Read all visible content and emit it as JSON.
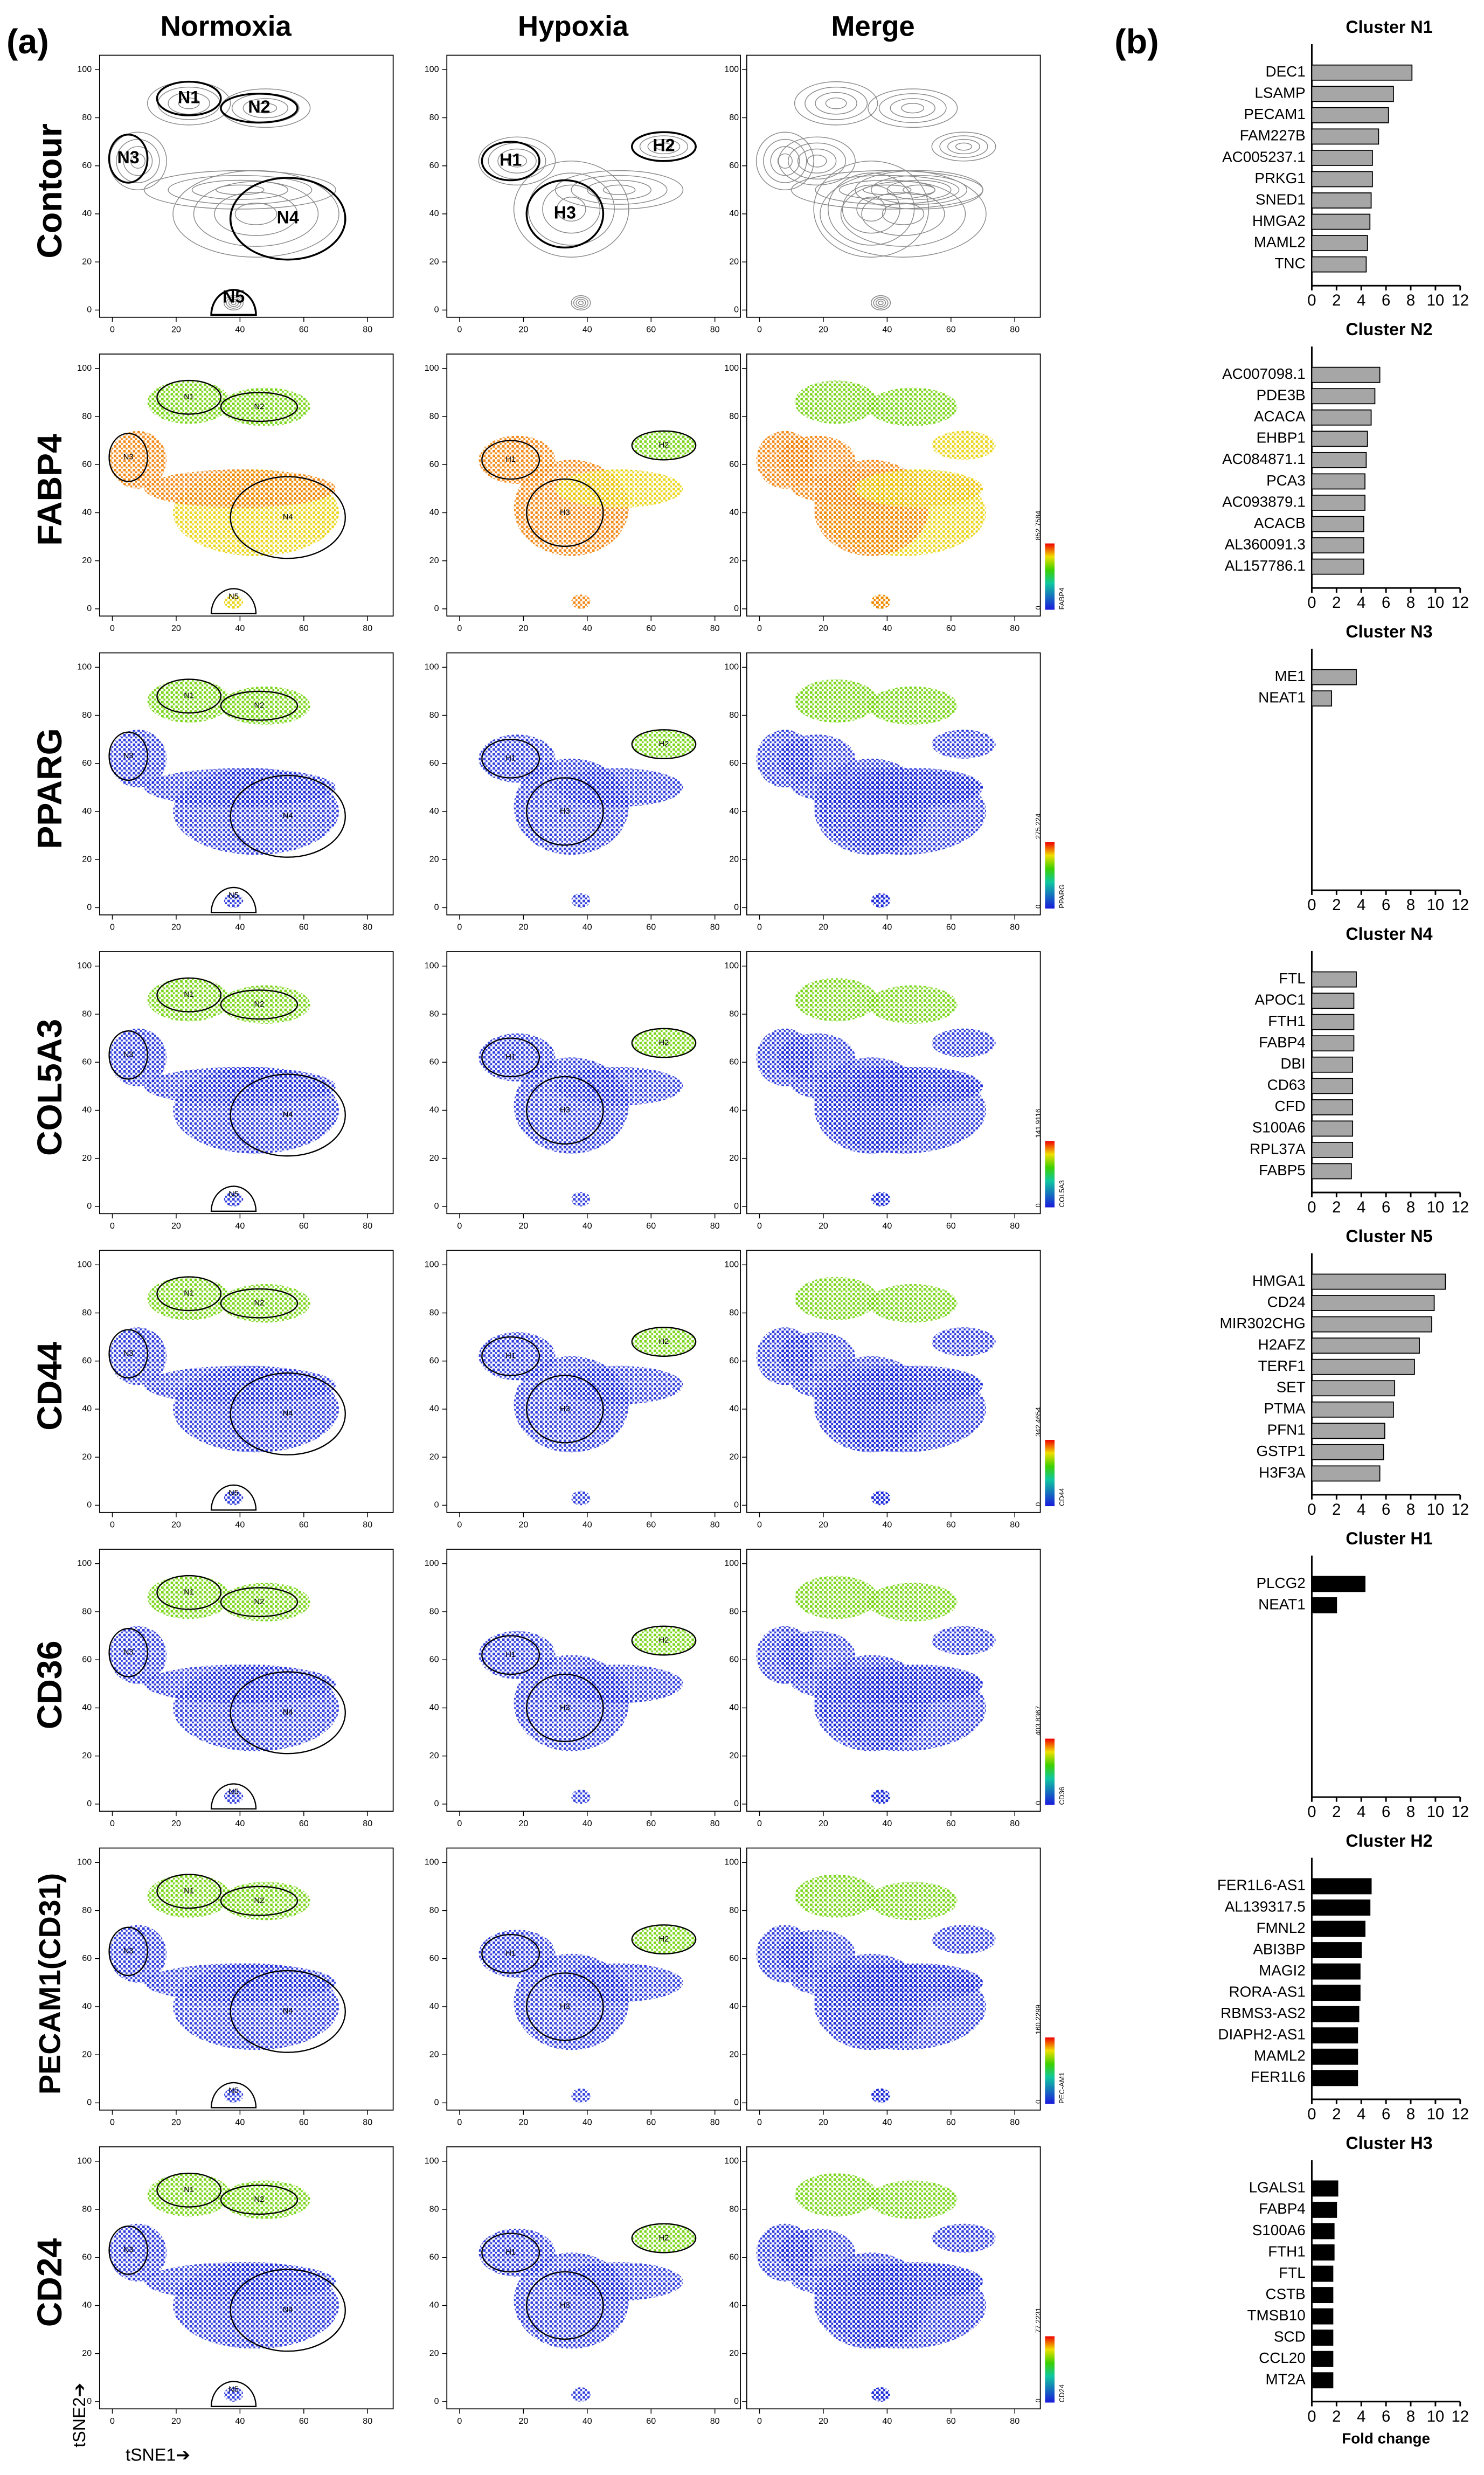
{
  "panel_labels": [
    "(a)",
    "(b)"
  ],
  "tsne": {
    "columns": [
      "Normoxia",
      "Hypoxia",
      "Merge"
    ],
    "rows": [
      "Contour",
      "FABP4",
      "PPARG",
      "COL5A3",
      "CD44",
      "CD36",
      "PECAM1(CD31)",
      "CD24"
    ],
    "xlim": [
      -4,
      88
    ],
    "ylim": [
      -3,
      106
    ],
    "xticks": [
      0,
      20,
      40,
      60,
      80
    ],
    "yticks": [
      0,
      20,
      40,
      60,
      80,
      100
    ],
    "normoxia_clusters": [
      "N1",
      "N2",
      "N3",
      "N4",
      "N5"
    ],
    "hypoxia_clusters": [
      "H1",
      "H2",
      "H3"
    ],
    "colorbars": [
      {
        "min": 0,
        "max": 852.7584,
        "label": "FABP4"
      },
      {
        "min": 0,
        "max": 275.224,
        "label": "PPARG"
      },
      {
        "min": 0,
        "max": 141.9116,
        "label": "COL5A3"
      },
      {
        "min": 0,
        "max": 342.4654,
        "label": "CD44"
      },
      {
        "min": 0,
        "max": 403.8367,
        "label": "CD36"
      },
      {
        "min": 0,
        "max": 160.2299,
        "label": "PEC-AM1"
      },
      {
        "min": 0,
        "max": 77.2231,
        "label": "CD24"
      }
    ],
    "x_axis_label": "tSNE1➔",
    "y_axis_label": "tSNE2➔"
  },
  "chart_data": [
    {
      "type": "bar",
      "orientation": "horizontal",
      "title": "Cluster N1",
      "color": "#a6a6a6",
      "xlim": [
        0,
        12
      ],
      "xticks": [
        0,
        2,
        4,
        6,
        8,
        10,
        12
      ],
      "categories": [
        "DEC1",
        "LSAMP",
        "PECAM1",
        "FAM227B",
        "AC005237.1",
        "PRKG1",
        "SNED1",
        "HMGA2",
        "MAML2",
        "TNC"
      ],
      "values": [
        8.1,
        6.6,
        6.2,
        5.4,
        4.9,
        4.9,
        4.8,
        4.7,
        4.5,
        4.4
      ]
    },
    {
      "type": "bar",
      "orientation": "horizontal",
      "title": "Cluster N2",
      "color": "#a6a6a6",
      "xlim": [
        0,
        12
      ],
      "xticks": [
        0,
        2,
        4,
        6,
        8,
        10,
        12
      ],
      "categories": [
        "AC007098.1",
        "PDE3B",
        "ACACA",
        "EHBP1",
        "AC084871.1",
        "PCA3",
        "AC093879.1",
        "ACACB",
        "AL360091.3",
        "AL157786.1"
      ],
      "values": [
        5.5,
        5.1,
        4.8,
        4.5,
        4.4,
        4.3,
        4.3,
        4.2,
        4.2,
        4.2
      ]
    },
    {
      "type": "bar",
      "orientation": "horizontal",
      "title": "Cluster N3",
      "color": "#a6a6a6",
      "xlim": [
        0,
        12
      ],
      "xticks": [
        0,
        2,
        4,
        6,
        8,
        10,
        12
      ],
      "categories": [
        "ME1",
        "NEAT1"
      ],
      "values": [
        3.6,
        1.6
      ]
    },
    {
      "type": "bar",
      "orientation": "horizontal",
      "title": "Cluster N4",
      "color": "#a6a6a6",
      "xlim": [
        0,
        12
      ],
      "xticks": [
        0,
        2,
        4,
        6,
        8,
        10,
        12
      ],
      "categories": [
        "FTL",
        "APOC1",
        "FTH1",
        "FABP4",
        "DBI",
        "CD63",
        "CFD",
        "S100A6",
        "RPL37A",
        "FABP5"
      ],
      "values": [
        3.6,
        3.4,
        3.4,
        3.4,
        3.3,
        3.3,
        3.3,
        3.3,
        3.3,
        3.2
      ]
    },
    {
      "type": "bar",
      "orientation": "horizontal",
      "title": "Cluster N5",
      "color": "#a6a6a6",
      "xlim": [
        0,
        12
      ],
      "xticks": [
        0,
        2,
        4,
        6,
        8,
        10,
        12
      ],
      "categories": [
        "HMGA1",
        "CD24",
        "MIR302CHG",
        "H2AFZ",
        "TERF1",
        "SET",
        "PTMA",
        "PFN1",
        "GSTP1",
        "H3F3A"
      ],
      "values": [
        10.8,
        9.9,
        9.7,
        8.7,
        8.3,
        6.7,
        6.6,
        5.9,
        5.8,
        5.5
      ]
    },
    {
      "type": "bar",
      "orientation": "horizontal",
      "title": "Cluster H1",
      "color": "#000000",
      "xlim": [
        0,
        12
      ],
      "xticks": [
        0,
        2,
        4,
        6,
        8,
        10,
        12
      ],
      "categories": [
        "PLCG2",
        "NEAT1"
      ],
      "values": [
        4.3,
        2.0
      ]
    },
    {
      "type": "bar",
      "orientation": "horizontal",
      "title": "Cluster H2",
      "color": "#000000",
      "xlim": [
        0,
        12
      ],
      "xticks": [
        0,
        2,
        4,
        6,
        8,
        10,
        12
      ],
      "categories": [
        "FER1L6-AS1",
        "AL139317.5",
        "FMNL2",
        "ABI3BP",
        "MAGI2",
        "RORA-AS1",
        "RBMS3-AS2",
        "DIAPH2-AS1",
        "MAML2",
        "FER1L6"
      ],
      "values": [
        4.8,
        4.7,
        4.3,
        4.0,
        3.9,
        3.9,
        3.8,
        3.7,
        3.7,
        3.7
      ]
    },
    {
      "type": "bar",
      "orientation": "horizontal",
      "title": "Cluster H3",
      "color": "#000000",
      "xlim": [
        0,
        12
      ],
      "xticks": [
        0,
        2,
        4,
        6,
        8,
        10,
        12
      ],
      "categories": [
        "LGALS1",
        "FABP4",
        "S100A6",
        "FTH1",
        "FTL",
        "CSTB",
        "TMSB10",
        "SCD",
        "CCL20",
        "MT2A"
      ],
      "values": [
        2.1,
        2.0,
        1.8,
        1.8,
        1.7,
        1.7,
        1.7,
        1.7,
        1.7,
        1.7
      ],
      "xlabel": "Fold change"
    }
  ]
}
